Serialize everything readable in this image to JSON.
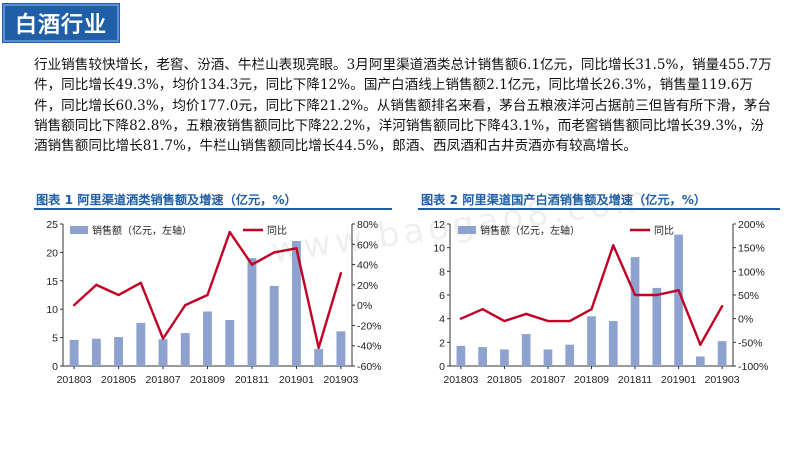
{
  "header": {
    "title": "白酒行业"
  },
  "paragraph": "行业销售较快增长，老窖、汾酒、牛栏山表现亮眼。3月阿里渠道酒类总计销售额6.1亿元，同比增长31.5%，销量455.7万件，同比增长49.3%，均价134.3元，同比下降12%。国产白酒线上销售额2.1亿元，同比增长26.3%，销售量119.6万件，同比增长60.3%，均价177.0元，同比下降21.2%。从销售额排名来看，茅台五粮液洋河占据前三但皆有所下滑，茅台销售额同比下降82.8%，五粮液销售额同比下降22.2%，洋河销售额同比下降43.1%，而老窖销售额同比增长39.3%，汾酒销售额同比增长81.7%，牛栏山销售额同比增长44.5%，郎酒、西凤酒和古井贡酒亦有较高增长。",
  "watermark": "www.baogao8.com",
  "colors": {
    "bar": "#8ea2cf",
    "line": "#c00024",
    "accent": "#1f5fa8"
  },
  "chart_data": [
    {
      "type": "bar",
      "title": "图表 1  阿里渠道酒类销售额及增速（亿元，%）",
      "categories": [
        "201803",
        "201804",
        "201805",
        "201806",
        "201807",
        "201808",
        "201809",
        "201810",
        "201811",
        "201812",
        "201901",
        "201902",
        "201903"
      ],
      "x_tick_labels": [
        "201803",
        "201805",
        "201807",
        "201809",
        "201811",
        "201901",
        "201903"
      ],
      "series": [
        {
          "name": "销售额（亿元，左轴）",
          "type": "bar",
          "axis": "left",
          "values": [
            4.6,
            4.8,
            5.1,
            7.6,
            4.7,
            5.8,
            9.6,
            8.1,
            19.0,
            14.1,
            22.0,
            3.0,
            6.1
          ]
        },
        {
          "name": "同比",
          "type": "line",
          "axis": "right",
          "values": [
            0.0,
            20.0,
            10.0,
            22.0,
            -33.0,
            0.0,
            10.0,
            72.0,
            40.0,
            52.0,
            56.0,
            -42.0,
            31.5
          ]
        }
      ],
      "left_axis": {
        "ylim": [
          0,
          25
        ],
        "ticks": [
          0,
          5,
          10,
          15,
          20,
          25
        ]
      },
      "right_axis": {
        "ylim": [
          -60,
          80
        ],
        "ticks": [
          "-60%",
          "-40%",
          "-20%",
          "0%",
          "20%",
          "40%",
          "60%",
          "80%"
        ],
        "tick_values": [
          -60,
          -40,
          -20,
          0,
          20,
          40,
          60,
          80
        ]
      },
      "legend": [
        "销售额（亿元，左轴）",
        "同比"
      ]
    },
    {
      "type": "bar",
      "title": "图表 2  阿里渠道国产白酒销售额及增速（亿元，%）",
      "categories": [
        "201803",
        "201804",
        "201805",
        "201806",
        "201807",
        "201808",
        "201809",
        "201810",
        "201811",
        "201812",
        "201901",
        "201902",
        "201903"
      ],
      "x_tick_labels": [
        "201803",
        "201805",
        "201807",
        "201809",
        "201811",
        "201901",
        "201903"
      ],
      "series": [
        {
          "name": "销售额（亿元，左轴）",
          "type": "bar",
          "axis": "left",
          "values": [
            1.7,
            1.6,
            1.4,
            2.7,
            1.4,
            1.8,
            4.2,
            3.8,
            9.2,
            6.6,
            11.1,
            0.8,
            2.1
          ]
        },
        {
          "name": "同比",
          "type": "line",
          "axis": "right",
          "values": [
            0.0,
            20.0,
            -5.0,
            10.0,
            -5.0,
            -5.0,
            20.0,
            155.0,
            50.0,
            50.0,
            60.0,
            -55.0,
            26.3
          ]
        }
      ],
      "left_axis": {
        "ylim": [
          0,
          12
        ],
        "ticks": [
          0,
          2,
          4,
          6,
          8,
          10,
          12
        ]
      },
      "right_axis": {
        "ylim": [
          -100,
          200
        ],
        "ticks": [
          "-100%",
          "-50%",
          "0%",
          "50%",
          "100%",
          "150%",
          "200%"
        ],
        "tick_values": [
          -100,
          -50,
          0,
          50,
          100,
          150,
          200
        ]
      },
      "legend": [
        "销售额（亿元，左轴）",
        "同比"
      ]
    }
  ]
}
